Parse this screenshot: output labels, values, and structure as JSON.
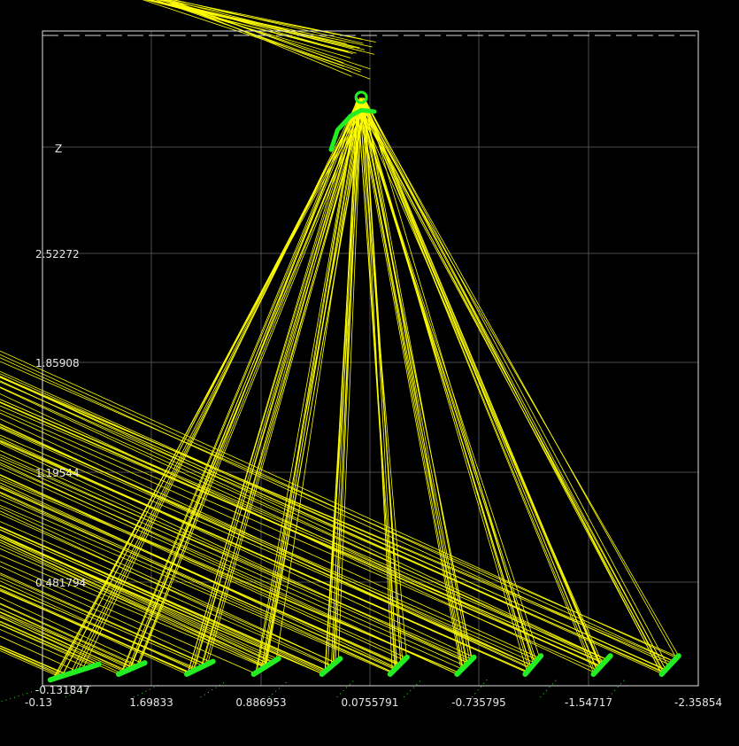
{
  "chart_data": {
    "type": "line",
    "axis_label": "Z",
    "x_ticks": [
      "-0.13",
      "1.69833",
      "0.886953",
      "0.0755791",
      "-0.735795",
      "-1.54717",
      "-2.35854"
    ],
    "y_ticks": [
      "-0.131847",
      "0.481794",
      "1.19544",
      "1.85908",
      "2.52272"
    ],
    "xlim": [
      2.5,
      -2.5
    ],
    "ylim": [
      -0.131847,
      4.5
    ],
    "grid": true,
    "colors": {
      "background": "#000000",
      "grid": "#4d4d4d",
      "frame": "#e0e0e0",
      "rays": "#ffff00",
      "surfaces": "#22ee22"
    },
    "series": [
      {
        "mirror_focus": [
          0.07,
          4.03
        ],
        "mirror_arc": [
          [
            0.3,
            3.66
          ],
          [
            0.25,
            3.8
          ],
          [
            0.15,
            3.9
          ],
          [
            0.07,
            3.94
          ],
          [
            -0.03,
            3.93
          ]
        ],
        "receivers": [
          {
            "x0": 2.44,
            "y0": -0.09,
            "x1": 2.07,
            "y1": 0.02
          },
          {
            "x0": 1.92,
            "y0": -0.05,
            "x1": 1.72,
            "y1": 0.03
          },
          {
            "x0": 1.4,
            "y0": -0.05,
            "x1": 1.2,
            "y1": 0.04
          },
          {
            "x0": 0.89,
            "y0": -0.05,
            "x1": 0.7,
            "y1": 0.06
          },
          {
            "x0": 0.37,
            "y0": -0.05,
            "x1": 0.23,
            "y1": 0.06
          },
          {
            "x0": -0.15,
            "y0": -0.05,
            "x1": -0.28,
            "y1": 0.07
          },
          {
            "x0": -0.66,
            "y0": -0.05,
            "x1": -0.79,
            "y1": 0.07
          },
          {
            "x0": -1.18,
            "y0": -0.05,
            "x1": -1.3,
            "y1": 0.08
          },
          {
            "x0": -1.7,
            "y0": -0.05,
            "x1": -1.83,
            "y1": 0.08
          },
          {
            "x0": -2.22,
            "y0": -0.05,
            "x1": -2.35,
            "y1": 0.08
          }
        ]
      }
    ]
  }
}
